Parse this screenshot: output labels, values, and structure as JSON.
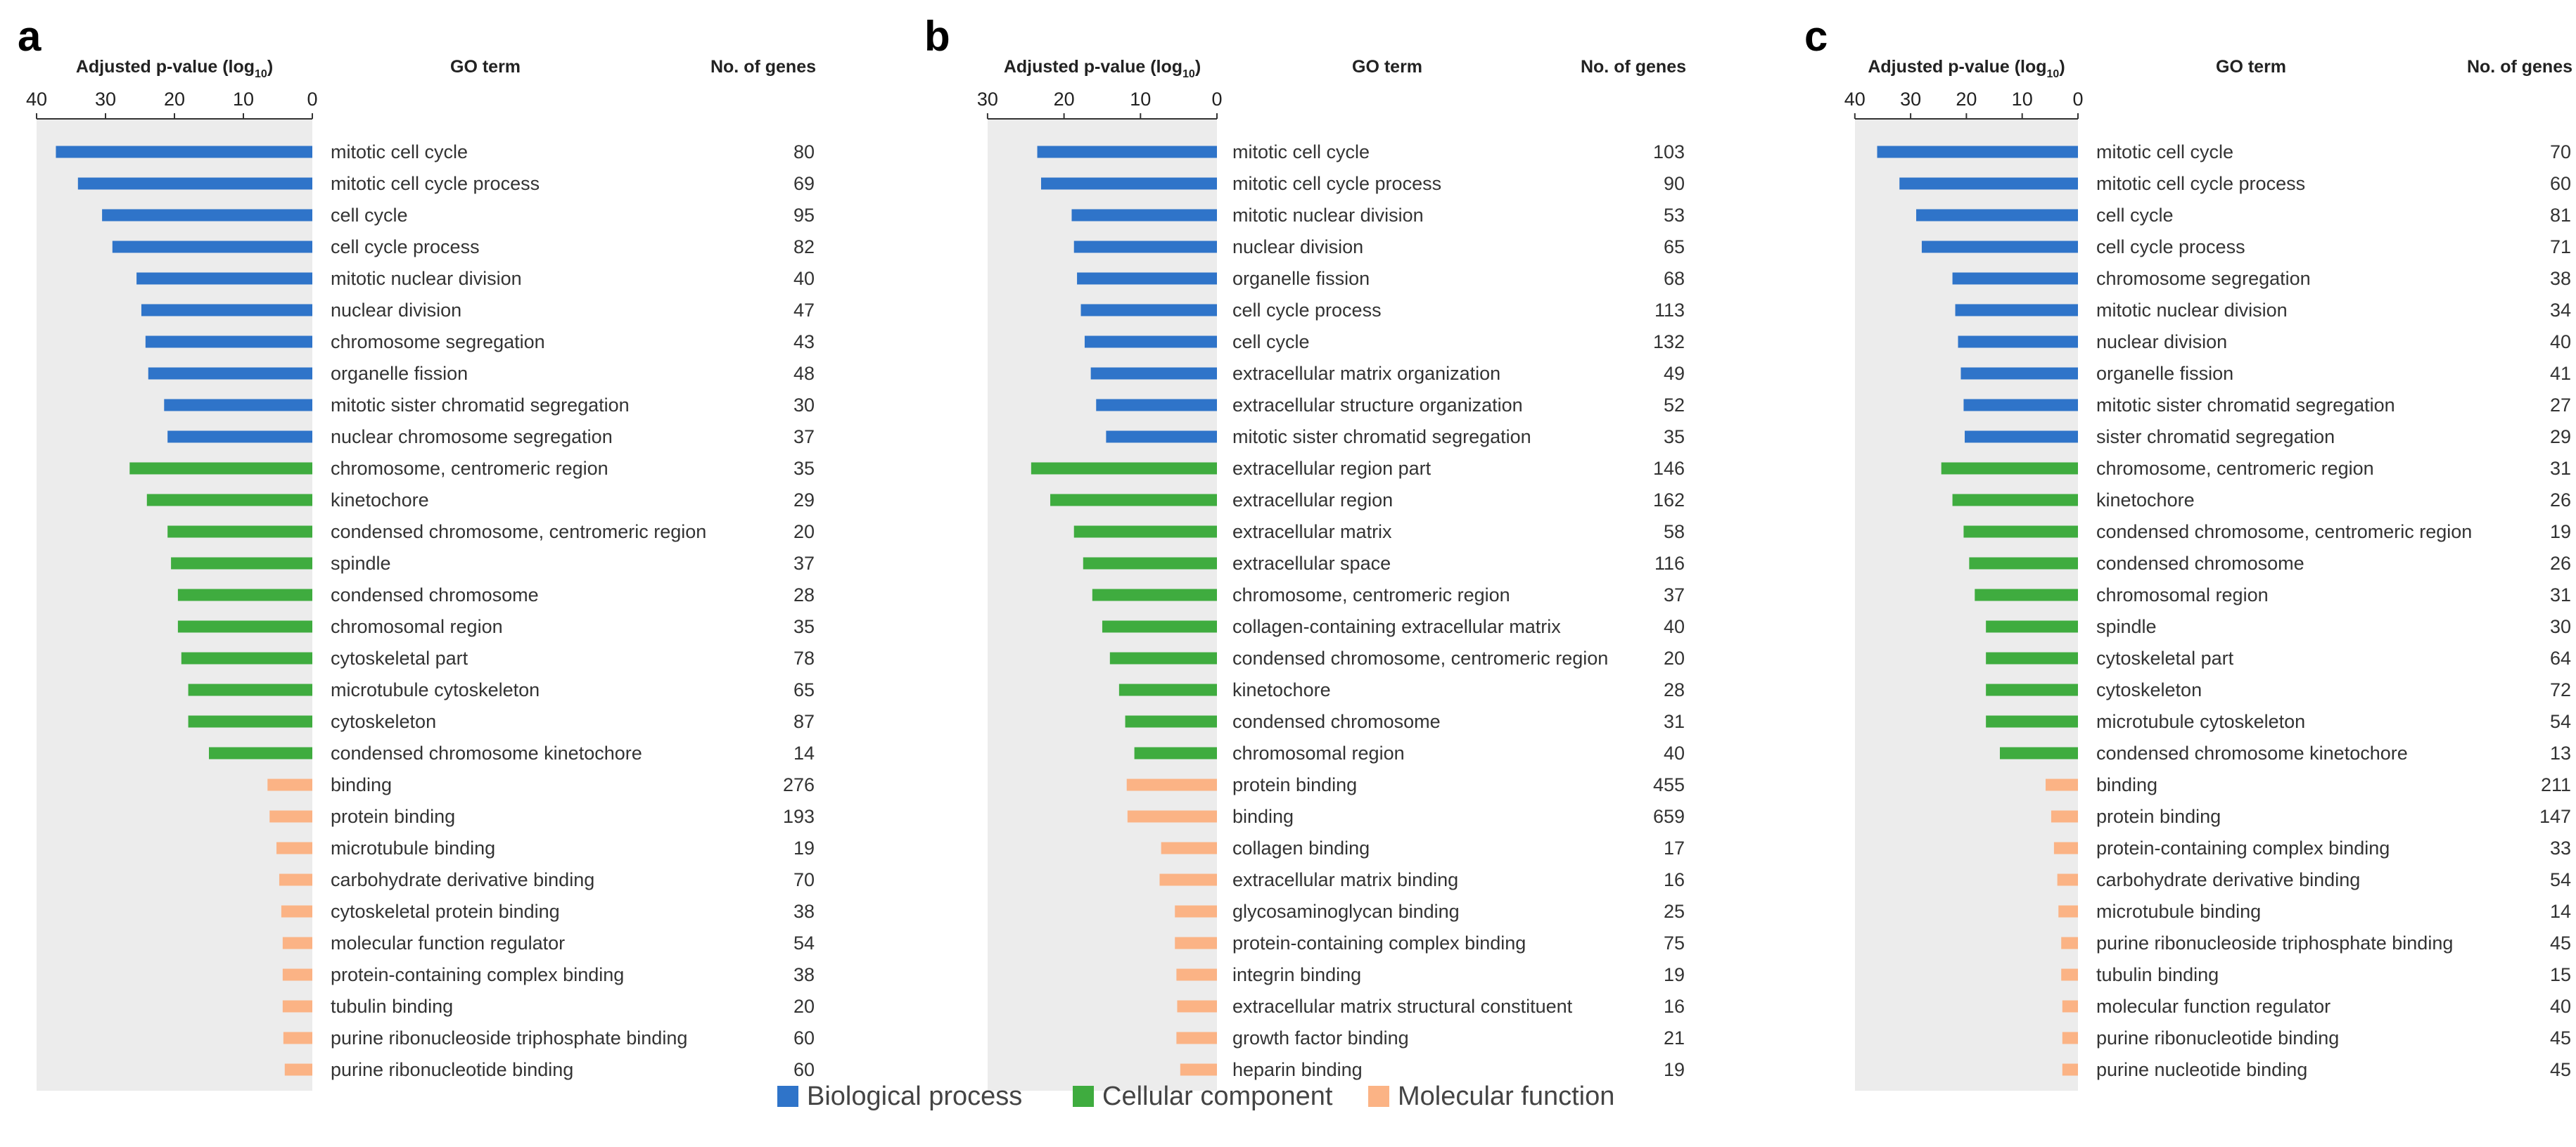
{
  "figure": {
    "legend": [
      {
        "label": "Biological process",
        "color": "#2f74c9"
      },
      {
        "label": "Cellular component",
        "color": "#3fac3f"
      },
      {
        "label": "Molecular function",
        "color": "#fbb385"
      }
    ]
  },
  "chart_data": [
    {
      "type": "bar",
      "panel_label": "a",
      "header": {
        "xlabel_main": "Adjusted p-value (log",
        "xlabel_sub": "10",
        "xlabel_end": ")",
        "term_header": "GO term",
        "count_header": "No. of genes"
      },
      "xticks": [
        "40",
        "30",
        "20",
        "10",
        "0"
      ],
      "xlim": [
        40,
        0
      ],
      "rows": [
        {
          "term": "mitotic cell cycle",
          "count": "80",
          "value": 37.2,
          "cat": 0
        },
        {
          "term": "mitotic cell cycle process",
          "count": "69",
          "value": 34.0,
          "cat": 0
        },
        {
          "term": "cell cycle",
          "count": "95",
          "value": 30.5,
          "cat": 0
        },
        {
          "term": "cell cycle process",
          "count": "82",
          "value": 29.0,
          "cat": 0
        },
        {
          "term": "mitotic nuclear division",
          "count": "40",
          "value": 25.5,
          "cat": 0
        },
        {
          "term": "nuclear division",
          "count": "47",
          "value": 24.8,
          "cat": 0
        },
        {
          "term": "chromosome segregation",
          "count": "43",
          "value": 24.2,
          "cat": 0
        },
        {
          "term": "organelle fission",
          "count": "48",
          "value": 23.8,
          "cat": 0
        },
        {
          "term": "mitotic sister chromatid segregation",
          "count": "30",
          "value": 21.5,
          "cat": 0
        },
        {
          "term": "nuclear chromosome segregation",
          "count": "37",
          "value": 21.0,
          "cat": 0
        },
        {
          "term": "chromosome, centromeric region",
          "count": "35",
          "value": 26.5,
          "cat": 1
        },
        {
          "term": "kinetochore",
          "count": "29",
          "value": 24.0,
          "cat": 1
        },
        {
          "term": "condensed chromosome, centromeric region",
          "count": "20",
          "value": 21.0,
          "cat": 1
        },
        {
          "term": "spindle",
          "count": "37",
          "value": 20.5,
          "cat": 1
        },
        {
          "term": "condensed chromosome",
          "count": "28",
          "value": 19.5,
          "cat": 1
        },
        {
          "term": "chromosomal region",
          "count": "35",
          "value": 19.5,
          "cat": 1
        },
        {
          "term": "cytoskeletal part",
          "count": "78",
          "value": 19.0,
          "cat": 1
        },
        {
          "term": "microtubule cytoskeleton",
          "count": "65",
          "value": 18.0,
          "cat": 1
        },
        {
          "term": "cytoskeleton",
          "count": "87",
          "value": 18.0,
          "cat": 1
        },
        {
          "term": "condensed chromosome kinetochore",
          "count": "14",
          "value": 15.0,
          "cat": 1
        },
        {
          "term": "binding",
          "count": "276",
          "value": 6.5,
          "cat": 2
        },
        {
          "term": "protein binding",
          "count": "193",
          "value": 6.2,
          "cat": 2
        },
        {
          "term": "microtubule binding",
          "count": "19",
          "value": 5.2,
          "cat": 2
        },
        {
          "term": "carbohydrate derivative binding",
          "count": "70",
          "value": 4.8,
          "cat": 2
        },
        {
          "term": "cytoskeletal protein binding",
          "count": "38",
          "value": 4.5,
          "cat": 2
        },
        {
          "term": "molecular function regulator",
          "count": "54",
          "value": 4.3,
          "cat": 2
        },
        {
          "term": "protein-containing complex binding",
          "count": "38",
          "value": 4.3,
          "cat": 2
        },
        {
          "term": "tubulin binding",
          "count": "20",
          "value": 4.3,
          "cat": 2
        },
        {
          "term": "purine ribonucleoside triphosphate binding",
          "count": "60",
          "value": 4.2,
          "cat": 2
        },
        {
          "term": "purine ribonucleotide binding",
          "count": "60",
          "value": 4.0,
          "cat": 2
        }
      ]
    },
    {
      "type": "bar",
      "panel_label": "b",
      "header": {
        "xlabel_main": "Adjusted p-value (log",
        "xlabel_sub": "10",
        "xlabel_end": ")",
        "term_header": "GO term",
        "count_header": "No. of genes"
      },
      "xticks": [
        "30",
        "20",
        "10",
        "0"
      ],
      "xlim": [
        30,
        0
      ],
      "rows": [
        {
          "term": "mitotic cell cycle",
          "count": "103",
          "value": 23.5,
          "cat": 0
        },
        {
          "term": "mitotic cell cycle process",
          "count": "90",
          "value": 23.0,
          "cat": 0
        },
        {
          "term": "mitotic nuclear division",
          "count": "53",
          "value": 19.0,
          "cat": 0
        },
        {
          "term": "nuclear division",
          "count": "65",
          "value": 18.7,
          "cat": 0
        },
        {
          "term": "organelle fission",
          "count": "68",
          "value": 18.3,
          "cat": 0
        },
        {
          "term": "cell cycle process",
          "count": "113",
          "value": 17.8,
          "cat": 0
        },
        {
          "term": "cell cycle",
          "count": "132",
          "value": 17.3,
          "cat": 0
        },
        {
          "term": "extracellular matrix organization",
          "count": "49",
          "value": 16.5,
          "cat": 0
        },
        {
          "term": "extracellular structure organization",
          "count": "52",
          "value": 15.8,
          "cat": 0
        },
        {
          "term": "mitotic sister chromatid segregation",
          "count": "35",
          "value": 14.5,
          "cat": 0
        },
        {
          "term": "extracellular region part",
          "count": "146",
          "value": 24.3,
          "cat": 1
        },
        {
          "term": "extracellular region",
          "count": "162",
          "value": 21.8,
          "cat": 1
        },
        {
          "term": "extracellular matrix",
          "count": "58",
          "value": 18.7,
          "cat": 1
        },
        {
          "term": "extracellular space",
          "count": "116",
          "value": 17.5,
          "cat": 1
        },
        {
          "term": "chromosome, centromeric region",
          "count": "37",
          "value": 16.3,
          "cat": 1
        },
        {
          "term": "collagen-containing extracellular matrix",
          "count": "40",
          "value": 15.0,
          "cat": 1
        },
        {
          "term": "condensed chromosome, centromeric region",
          "count": "20",
          "value": 14.0,
          "cat": 1
        },
        {
          "term": "kinetochore",
          "count": "28",
          "value": 12.8,
          "cat": 1
        },
        {
          "term": "condensed chromosome",
          "count": "31",
          "value": 12.0,
          "cat": 1
        },
        {
          "term": "chromosomal region",
          "count": "40",
          "value": 10.8,
          "cat": 1
        },
        {
          "term": "protein binding",
          "count": "455",
          "value": 11.8,
          "cat": 2
        },
        {
          "term": "binding",
          "count": "659",
          "value": 11.7,
          "cat": 2
        },
        {
          "term": "collagen binding",
          "count": "17",
          "value": 7.3,
          "cat": 2
        },
        {
          "term": "extracellular matrix binding",
          "count": "16",
          "value": 7.5,
          "cat": 2
        },
        {
          "term": "glycosaminoglycan binding",
          "count": "25",
          "value": 5.5,
          "cat": 2
        },
        {
          "term": "protein-containing complex binding",
          "count": "75",
          "value": 5.5,
          "cat": 2
        },
        {
          "term": "integrin binding",
          "count": "19",
          "value": 5.3,
          "cat": 2
        },
        {
          "term": "extracellular matrix structural constituent",
          "count": "16",
          "value": 5.2,
          "cat": 2
        },
        {
          "term": "growth factor binding",
          "count": "21",
          "value": 5.3,
          "cat": 2
        },
        {
          "term": "heparin binding",
          "count": "19",
          "value": 4.8,
          "cat": 2
        }
      ]
    },
    {
      "type": "bar",
      "panel_label": "c",
      "header": {
        "xlabel_main": "Adjusted p-value (log",
        "xlabel_sub": "10",
        "xlabel_end": ")",
        "term_header": "GO term",
        "count_header": "No. of genes"
      },
      "xticks": [
        "40",
        "30",
        "20",
        "10",
        "0"
      ],
      "xlim": [
        40,
        0
      ],
      "rows": [
        {
          "term": "mitotic cell cycle",
          "count": "70",
          "value": 36.0,
          "cat": 0
        },
        {
          "term": "mitotic cell cycle process",
          "count": "60",
          "value": 32.0,
          "cat": 0
        },
        {
          "term": "cell cycle",
          "count": "81",
          "value": 29.0,
          "cat": 0
        },
        {
          "term": "cell cycle process",
          "count": "71",
          "value": 28.0,
          "cat": 0
        },
        {
          "term": "chromosome segregation",
          "count": "38",
          "value": 22.5,
          "cat": 0
        },
        {
          "term": "mitotic nuclear division",
          "count": "34",
          "value": 22.0,
          "cat": 0
        },
        {
          "term": "nuclear division",
          "count": "40",
          "value": 21.5,
          "cat": 0
        },
        {
          "term": "organelle fission",
          "count": "41",
          "value": 21.0,
          "cat": 0
        },
        {
          "term": "mitotic sister chromatid segregation",
          "count": "27",
          "value": 20.5,
          "cat": 0
        },
        {
          "term": "sister chromatid segregation",
          "count": "29",
          "value": 20.3,
          "cat": 0
        },
        {
          "term": "chromosome, centromeric region",
          "count": "31",
          "value": 24.5,
          "cat": 1
        },
        {
          "term": "kinetochore",
          "count": "26",
          "value": 22.5,
          "cat": 1
        },
        {
          "term": "condensed chromosome, centromeric region",
          "count": "19",
          "value": 20.5,
          "cat": 1
        },
        {
          "term": "condensed chromosome",
          "count": "26",
          "value": 19.5,
          "cat": 1
        },
        {
          "term": "chromosomal region",
          "count": "31",
          "value": 18.5,
          "cat": 1
        },
        {
          "term": "spindle",
          "count": "30",
          "value": 16.5,
          "cat": 1
        },
        {
          "term": "cytoskeletal part",
          "count": "64",
          "value": 16.5,
          "cat": 1
        },
        {
          "term": "cytoskeleton",
          "count": "72",
          "value": 16.5,
          "cat": 1
        },
        {
          "term": "microtubule cytoskeleton",
          "count": "54",
          "value": 16.5,
          "cat": 1
        },
        {
          "term": "condensed chromosome kinetochore",
          "count": "13",
          "value": 14.0,
          "cat": 1
        },
        {
          "term": "binding",
          "count": "211",
          "value": 5.8,
          "cat": 2
        },
        {
          "term": "protein binding",
          "count": "147",
          "value": 4.8,
          "cat": 2
        },
        {
          "term": "protein-containing complex binding",
          "count": "33",
          "value": 4.3,
          "cat": 2
        },
        {
          "term": "carbohydrate derivative binding",
          "count": "54",
          "value": 3.7,
          "cat": 2
        },
        {
          "term": "microtubule binding",
          "count": "14",
          "value": 3.5,
          "cat": 2
        },
        {
          "term": "purine ribonucleoside triphosphate binding",
          "count": "45",
          "value": 3.0,
          "cat": 2
        },
        {
          "term": "tubulin binding",
          "count": "15",
          "value": 3.0,
          "cat": 2
        },
        {
          "term": "molecular function regulator",
          "count": "40",
          "value": 2.8,
          "cat": 2
        },
        {
          "term": "purine ribonucleotide binding",
          "count": "45",
          "value": 2.8,
          "cat": 2
        },
        {
          "term": "purine nucleotide binding",
          "count": "45",
          "value": 2.8,
          "cat": 2
        }
      ]
    }
  ]
}
